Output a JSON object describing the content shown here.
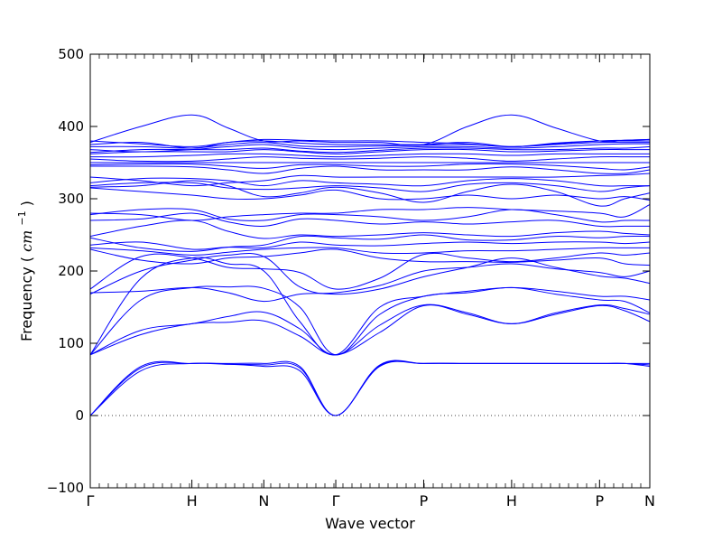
{
  "chart_data": {
    "type": "line",
    "title": "",
    "xlabel": "Wave vector",
    "ylabel": "Frequency",
    "ylabel_unit_base": "cm",
    "ylabel_unit_exp": "−1",
    "ylim": [
      -100,
      500
    ],
    "xlim": [
      0,
      4.9
    ],
    "yticks": [
      -100,
      0,
      100,
      200,
      300,
      400,
      500
    ],
    "ytick_labels": [
      "−100",
      "0",
      "100",
      "200",
      "300",
      "400",
      "500"
    ],
    "xticks": [
      {
        "x": 0.0,
        "label": "Γ"
      },
      {
        "x": 0.89,
        "label": "H"
      },
      {
        "x": 1.52,
        "label": "N"
      },
      {
        "x": 2.15,
        "label": "Γ"
      },
      {
        "x": 2.92,
        "label": "P"
      },
      {
        "x": 3.69,
        "label": "H"
      },
      {
        "x": 4.46,
        "label": "P"
      },
      {
        "x": 4.9,
        "label": "N"
      }
    ],
    "zero_line": {
      "y": 0,
      "style": "dotted"
    },
    "line_color": "#0000ff",
    "legend": "none",
    "grid": false,
    "x": [
      0.0,
      0.445,
      0.89,
      1.205,
      1.52,
      1.835,
      2.15,
      2.535,
      2.92,
      3.305,
      3.69,
      4.075,
      4.46,
      4.68,
      4.9
    ],
    "series": [
      {
        "values": [
          0,
          68,
          72,
          72,
          72,
          68,
          0,
          70,
          72,
          72,
          72,
          72,
          72,
          72,
          72
        ]
      },
      {
        "values": [
          0,
          66,
          72,
          71,
          70,
          66,
          0,
          69,
          72,
          72,
          72,
          72,
          72,
          72,
          70
        ]
      },
      {
        "values": [
          0,
          62,
          72,
          71,
          68,
          62,
          0,
          68,
          72,
          72,
          72,
          72,
          72,
          72,
          68
        ]
      },
      {
        "values": [
          84,
          112,
          127,
          129,
          131,
          110,
          84,
          115,
          152,
          140,
          127,
          140,
          152,
          145,
          130
        ]
      },
      {
        "values": [
          84,
          118,
          127,
          137,
          143,
          120,
          84,
          125,
          153,
          142,
          127,
          142,
          153,
          148,
          140
        ]
      },
      {
        "values": [
          84,
          160,
          177,
          178,
          176,
          150,
          84,
          140,
          165,
          170,
          177,
          168,
          160,
          158,
          142
        ]
      },
      {
        "values": [
          84,
          190,
          218,
          210,
          200,
          130,
          84,
          150,
          165,
          172,
          177,
          172,
          165,
          165,
          160
        ]
      },
      {
        "values": [
          168,
          200,
          215,
          222,
          220,
          178,
          168,
          175,
          192,
          205,
          218,
          205,
          193,
          190,
          183
        ]
      },
      {
        "values": [
          170,
          172,
          177,
          170,
          158,
          168,
          170,
          180,
          200,
          205,
          210,
          203,
          198,
          192,
          200
        ]
      },
      {
        "values": [
          175,
          220,
          218,
          205,
          203,
          198,
          175,
          190,
          223,
          218,
          213,
          218,
          225,
          222,
          225
        ]
      },
      {
        "values": [
          230,
          215,
          210,
          218,
          220,
          225,
          230,
          218,
          213,
          213,
          212,
          215,
          218,
          210,
          208
        ]
      },
      {
        "values": [
          232,
          228,
          222,
          226,
          230,
          232,
          232,
          225,
          225,
          228,
          228,
          230,
          232,
          232,
          232
        ]
      },
      {
        "values": [
          236,
          240,
          230,
          233,
          232,
          240,
          236,
          235,
          238,
          240,
          238,
          240,
          240,
          238,
          240
        ]
      },
      {
        "values": [
          246,
          232,
          227,
          233,
          236,
          248,
          246,
          244,
          250,
          243,
          243,
          248,
          246,
          248,
          248
        ]
      },
      {
        "values": [
          248,
          262,
          270,
          255,
          245,
          250,
          248,
          250,
          253,
          250,
          248,
          253,
          255,
          252,
          250
        ]
      },
      {
        "values": [
          270,
          272,
          280,
          268,
          262,
          272,
          270,
          265,
          268,
          265,
          268,
          270,
          262,
          262,
          262
        ]
      },
      {
        "values": [
          278,
          285,
          285,
          272,
          270,
          278,
          278,
          275,
          270,
          275,
          285,
          278,
          268,
          270,
          270
        ]
      },
      {
        "values": [
          280,
          278,
          270,
          275,
          278,
          280,
          280,
          285,
          285,
          288,
          285,
          283,
          280,
          275,
          292
        ]
      },
      {
        "values": [
          315,
          310,
          305,
          300,
          300,
          305,
          312,
          300,
          300,
          305,
          300,
          305,
          300,
          303,
          298
        ]
      },
      {
        "values": [
          316,
          318,
          325,
          318,
          303,
          308,
          316,
          308,
          295,
          310,
          320,
          310,
          290,
          300,
          308
        ]
      },
      {
        "values": [
          318,
          322,
          322,
          315,
          313,
          315,
          318,
          315,
          310,
          320,
          322,
          318,
          310,
          315,
          318
        ]
      },
      {
        "values": [
          322,
          328,
          328,
          325,
          318,
          325,
          322,
          320,
          318,
          325,
          328,
          325,
          318,
          318,
          318
        ]
      },
      {
        "values": [
          330,
          325,
          318,
          322,
          325,
          332,
          330,
          330,
          330,
          330,
          330,
          330,
          332,
          333,
          335
        ]
      },
      {
        "values": [
          345,
          345,
          344,
          340,
          335,
          342,
          345,
          340,
          340,
          340,
          344,
          340,
          335,
          335,
          340
        ]
      },
      {
        "values": [
          347,
          348,
          348,
          345,
          342,
          347,
          347,
          345,
          345,
          348,
          348,
          346,
          342,
          340,
          344
        ]
      },
      {
        "values": [
          350,
          350,
          350,
          350,
          350,
          350,
          350,
          350,
          350,
          350,
          350,
          350,
          350,
          350,
          350
        ]
      },
      {
        "values": [
          355,
          352,
          352,
          355,
          358,
          356,
          355,
          356,
          358,
          356,
          352,
          355,
          358,
          358,
          358
        ]
      },
      {
        "values": [
          358,
          358,
          360,
          362,
          362,
          360,
          358,
          360,
          362,
          362,
          360,
          362,
          362,
          362,
          362
        ]
      },
      {
        "values": [
          362,
          365,
          365,
          365,
          368,
          365,
          362,
          365,
          368,
          368,
          365,
          366,
          368,
          368,
          368
        ]
      },
      {
        "values": [
          364,
          368,
          368,
          368,
          370,
          366,
          364,
          367,
          370,
          370,
          368,
          368,
          370,
          370,
          372
        ]
      },
      {
        "values": [
          368,
          365,
          368,
          372,
          375,
          370,
          368,
          370,
          372,
          372,
          370,
          372,
          375,
          376,
          376
        ]
      },
      {
        "values": [
          372,
          372,
          370,
          375,
          378,
          373,
          372,
          373,
          374,
          375,
          372,
          375,
          378,
          378,
          378
        ]
      },
      {
        "values": [
          375,
          378,
          370,
          378,
          380,
          377,
          375,
          375,
          375,
          378,
          372,
          377,
          380,
          380,
          380
        ]
      },
      {
        "values": [
          378,
          400,
          416,
          398,
          380,
          380,
          378,
          378,
          375,
          400,
          416,
          398,
          380,
          381,
          382
        ]
      },
      {
        "values": [
          380,
          376,
          372,
          378,
          382,
          381,
          380,
          380,
          378,
          376,
          372,
          376,
          380,
          381,
          382
        ]
      }
    ]
  }
}
